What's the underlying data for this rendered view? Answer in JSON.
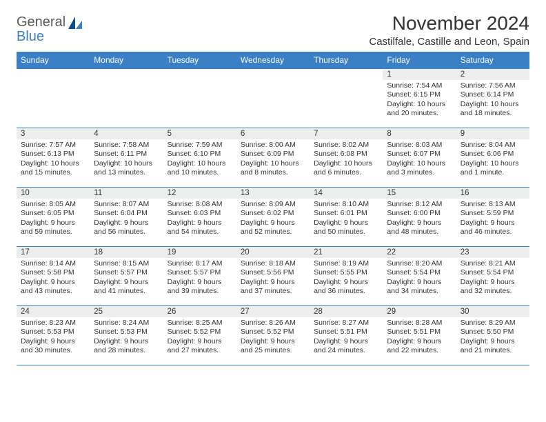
{
  "logo": {
    "word1": "General",
    "word2": "Blue"
  },
  "title": "November 2024",
  "location": "Castilfale, Castille and Leon, Spain",
  "colors": {
    "header_bg": "#3b7fc4",
    "header_text": "#ffffff",
    "border": "#3b7fc4",
    "dayband": "#eceded",
    "text": "#333333",
    "logo_gray": "#5a5a5a",
    "logo_blue": "#3b7fc4",
    "background": "#ffffff"
  },
  "fonts": {
    "title_size": 28,
    "location_size": 15,
    "header_size": 12,
    "daynum_size": 11.5,
    "body_size": 10.5
  },
  "day_headers": [
    "Sunday",
    "Monday",
    "Tuesday",
    "Wednesday",
    "Thursday",
    "Friday",
    "Saturday"
  ],
  "weeks": [
    [
      {
        "empty": true
      },
      {
        "empty": true
      },
      {
        "empty": true
      },
      {
        "empty": true
      },
      {
        "empty": true
      },
      {
        "day": "1",
        "sunrise": "Sunrise: 7:54 AM",
        "sunset": "Sunset: 6:15 PM",
        "daylight1": "Daylight: 10 hours",
        "daylight2": "and 20 minutes."
      },
      {
        "day": "2",
        "sunrise": "Sunrise: 7:56 AM",
        "sunset": "Sunset: 6:14 PM",
        "daylight1": "Daylight: 10 hours",
        "daylight2": "and 18 minutes."
      }
    ],
    [
      {
        "day": "3",
        "sunrise": "Sunrise: 7:57 AM",
        "sunset": "Sunset: 6:13 PM",
        "daylight1": "Daylight: 10 hours",
        "daylight2": "and 15 minutes."
      },
      {
        "day": "4",
        "sunrise": "Sunrise: 7:58 AM",
        "sunset": "Sunset: 6:11 PM",
        "daylight1": "Daylight: 10 hours",
        "daylight2": "and 13 minutes."
      },
      {
        "day": "5",
        "sunrise": "Sunrise: 7:59 AM",
        "sunset": "Sunset: 6:10 PM",
        "daylight1": "Daylight: 10 hours",
        "daylight2": "and 10 minutes."
      },
      {
        "day": "6",
        "sunrise": "Sunrise: 8:00 AM",
        "sunset": "Sunset: 6:09 PM",
        "daylight1": "Daylight: 10 hours",
        "daylight2": "and 8 minutes."
      },
      {
        "day": "7",
        "sunrise": "Sunrise: 8:02 AM",
        "sunset": "Sunset: 6:08 PM",
        "daylight1": "Daylight: 10 hours",
        "daylight2": "and 6 minutes."
      },
      {
        "day": "8",
        "sunrise": "Sunrise: 8:03 AM",
        "sunset": "Sunset: 6:07 PM",
        "daylight1": "Daylight: 10 hours",
        "daylight2": "and 3 minutes."
      },
      {
        "day": "9",
        "sunrise": "Sunrise: 8:04 AM",
        "sunset": "Sunset: 6:06 PM",
        "daylight1": "Daylight: 10 hours",
        "daylight2": "and 1 minute."
      }
    ],
    [
      {
        "day": "10",
        "sunrise": "Sunrise: 8:05 AM",
        "sunset": "Sunset: 6:05 PM",
        "daylight1": "Daylight: 9 hours",
        "daylight2": "and 59 minutes."
      },
      {
        "day": "11",
        "sunrise": "Sunrise: 8:07 AM",
        "sunset": "Sunset: 6:04 PM",
        "daylight1": "Daylight: 9 hours",
        "daylight2": "and 56 minutes."
      },
      {
        "day": "12",
        "sunrise": "Sunrise: 8:08 AM",
        "sunset": "Sunset: 6:03 PM",
        "daylight1": "Daylight: 9 hours",
        "daylight2": "and 54 minutes."
      },
      {
        "day": "13",
        "sunrise": "Sunrise: 8:09 AM",
        "sunset": "Sunset: 6:02 PM",
        "daylight1": "Daylight: 9 hours",
        "daylight2": "and 52 minutes."
      },
      {
        "day": "14",
        "sunrise": "Sunrise: 8:10 AM",
        "sunset": "Sunset: 6:01 PM",
        "daylight1": "Daylight: 9 hours",
        "daylight2": "and 50 minutes."
      },
      {
        "day": "15",
        "sunrise": "Sunrise: 8:12 AM",
        "sunset": "Sunset: 6:00 PM",
        "daylight1": "Daylight: 9 hours",
        "daylight2": "and 48 minutes."
      },
      {
        "day": "16",
        "sunrise": "Sunrise: 8:13 AM",
        "sunset": "Sunset: 5:59 PM",
        "daylight1": "Daylight: 9 hours",
        "daylight2": "and 46 minutes."
      }
    ],
    [
      {
        "day": "17",
        "sunrise": "Sunrise: 8:14 AM",
        "sunset": "Sunset: 5:58 PM",
        "daylight1": "Daylight: 9 hours",
        "daylight2": "and 43 minutes."
      },
      {
        "day": "18",
        "sunrise": "Sunrise: 8:15 AM",
        "sunset": "Sunset: 5:57 PM",
        "daylight1": "Daylight: 9 hours",
        "daylight2": "and 41 minutes."
      },
      {
        "day": "19",
        "sunrise": "Sunrise: 8:17 AM",
        "sunset": "Sunset: 5:57 PM",
        "daylight1": "Daylight: 9 hours",
        "daylight2": "and 39 minutes."
      },
      {
        "day": "20",
        "sunrise": "Sunrise: 8:18 AM",
        "sunset": "Sunset: 5:56 PM",
        "daylight1": "Daylight: 9 hours",
        "daylight2": "and 37 minutes."
      },
      {
        "day": "21",
        "sunrise": "Sunrise: 8:19 AM",
        "sunset": "Sunset: 5:55 PM",
        "daylight1": "Daylight: 9 hours",
        "daylight2": "and 36 minutes."
      },
      {
        "day": "22",
        "sunrise": "Sunrise: 8:20 AM",
        "sunset": "Sunset: 5:54 PM",
        "daylight1": "Daylight: 9 hours",
        "daylight2": "and 34 minutes."
      },
      {
        "day": "23",
        "sunrise": "Sunrise: 8:21 AM",
        "sunset": "Sunset: 5:54 PM",
        "daylight1": "Daylight: 9 hours",
        "daylight2": "and 32 minutes."
      }
    ],
    [
      {
        "day": "24",
        "sunrise": "Sunrise: 8:23 AM",
        "sunset": "Sunset: 5:53 PM",
        "daylight1": "Daylight: 9 hours",
        "daylight2": "and 30 minutes."
      },
      {
        "day": "25",
        "sunrise": "Sunrise: 8:24 AM",
        "sunset": "Sunset: 5:53 PM",
        "daylight1": "Daylight: 9 hours",
        "daylight2": "and 28 minutes."
      },
      {
        "day": "26",
        "sunrise": "Sunrise: 8:25 AM",
        "sunset": "Sunset: 5:52 PM",
        "daylight1": "Daylight: 9 hours",
        "daylight2": "and 27 minutes."
      },
      {
        "day": "27",
        "sunrise": "Sunrise: 8:26 AM",
        "sunset": "Sunset: 5:52 PM",
        "daylight1": "Daylight: 9 hours",
        "daylight2": "and 25 minutes."
      },
      {
        "day": "28",
        "sunrise": "Sunrise: 8:27 AM",
        "sunset": "Sunset: 5:51 PM",
        "daylight1": "Daylight: 9 hours",
        "daylight2": "and 24 minutes."
      },
      {
        "day": "29",
        "sunrise": "Sunrise: 8:28 AM",
        "sunset": "Sunset: 5:51 PM",
        "daylight1": "Daylight: 9 hours",
        "daylight2": "and 22 minutes."
      },
      {
        "day": "30",
        "sunrise": "Sunrise: 8:29 AM",
        "sunset": "Sunset: 5:50 PM",
        "daylight1": "Daylight: 9 hours",
        "daylight2": "and 21 minutes."
      }
    ]
  ]
}
